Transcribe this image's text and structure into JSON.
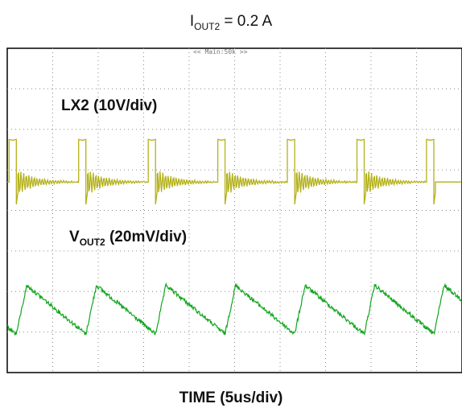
{
  "chart_data": {
    "type": "line",
    "title_main": "I",
    "title_sub": "OUT2",
    "title_rest": " = 0.2 A",
    "scope_header": "<< Main:50k >>",
    "xlabel": "TIME (5us/div)",
    "grid": true,
    "divisions": {
      "x": 10,
      "y": 8
    },
    "series": [
      {
        "name": "LX2 (10V/div)",
        "label_main": "LX2 (10V/div)",
        "color": "#b4b11a",
        "kind": "switching-node",
        "period_div": 1.53,
        "first_pulse_div": 0.04,
        "pulse_width_div": 0.16,
        "high_div": 1.05,
        "ringing_amplitude_div": 0.35
      },
      {
        "name": "VOUT2 (20mV/div)",
        "label_main": "V",
        "label_sub": "OUT2",
        "label_rest": " (20mV/div)",
        "color": "#12a51e",
        "kind": "sawtooth-ripple",
        "period_div": 1.53,
        "peak_to_peak_div": 1.2,
        "noise_div": 0.05
      }
    ]
  }
}
